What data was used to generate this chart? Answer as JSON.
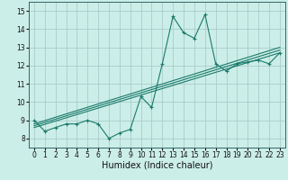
{
  "xlabel": "Humidex (Indice chaleur)",
  "xlim": [
    -0.5,
    23.5
  ],
  "ylim": [
    7.5,
    15.5
  ],
  "xticks": [
    0,
    1,
    2,
    3,
    4,
    5,
    6,
    7,
    8,
    9,
    10,
    11,
    12,
    13,
    14,
    15,
    16,
    17,
    18,
    19,
    20,
    21,
    22,
    23
  ],
  "yticks": [
    8,
    9,
    10,
    11,
    12,
    13,
    14,
    15
  ],
  "bg_color": "#cceee8",
  "grid_color": "#aacccc",
  "line_color": "#1a7a6a",
  "curve1_x": [
    0,
    1,
    2,
    3,
    4,
    5,
    6,
    7,
    8,
    9,
    10,
    11,
    12,
    13,
    14,
    15,
    16,
    17,
    18,
    19,
    20,
    21,
    22,
    23
  ],
  "curve1_y": [
    9.0,
    8.4,
    8.6,
    8.8,
    8.8,
    9.0,
    8.8,
    8.0,
    8.3,
    8.5,
    10.3,
    9.7,
    12.1,
    14.7,
    13.8,
    13.5,
    14.8,
    12.1,
    11.7,
    12.1,
    12.2,
    12.3,
    12.1,
    12.7
  ],
  "trend_lines": [
    {
      "x": [
        0,
        23
      ],
      "y": [
        8.8,
        13.0
      ]
    },
    {
      "x": [
        0,
        23
      ],
      "y": [
        8.6,
        12.7
      ]
    },
    {
      "x": [
        0,
        23
      ],
      "y": [
        8.7,
        12.85
      ]
    }
  ],
  "tick_fontsize": 5.5,
  "xlabel_fontsize": 7
}
